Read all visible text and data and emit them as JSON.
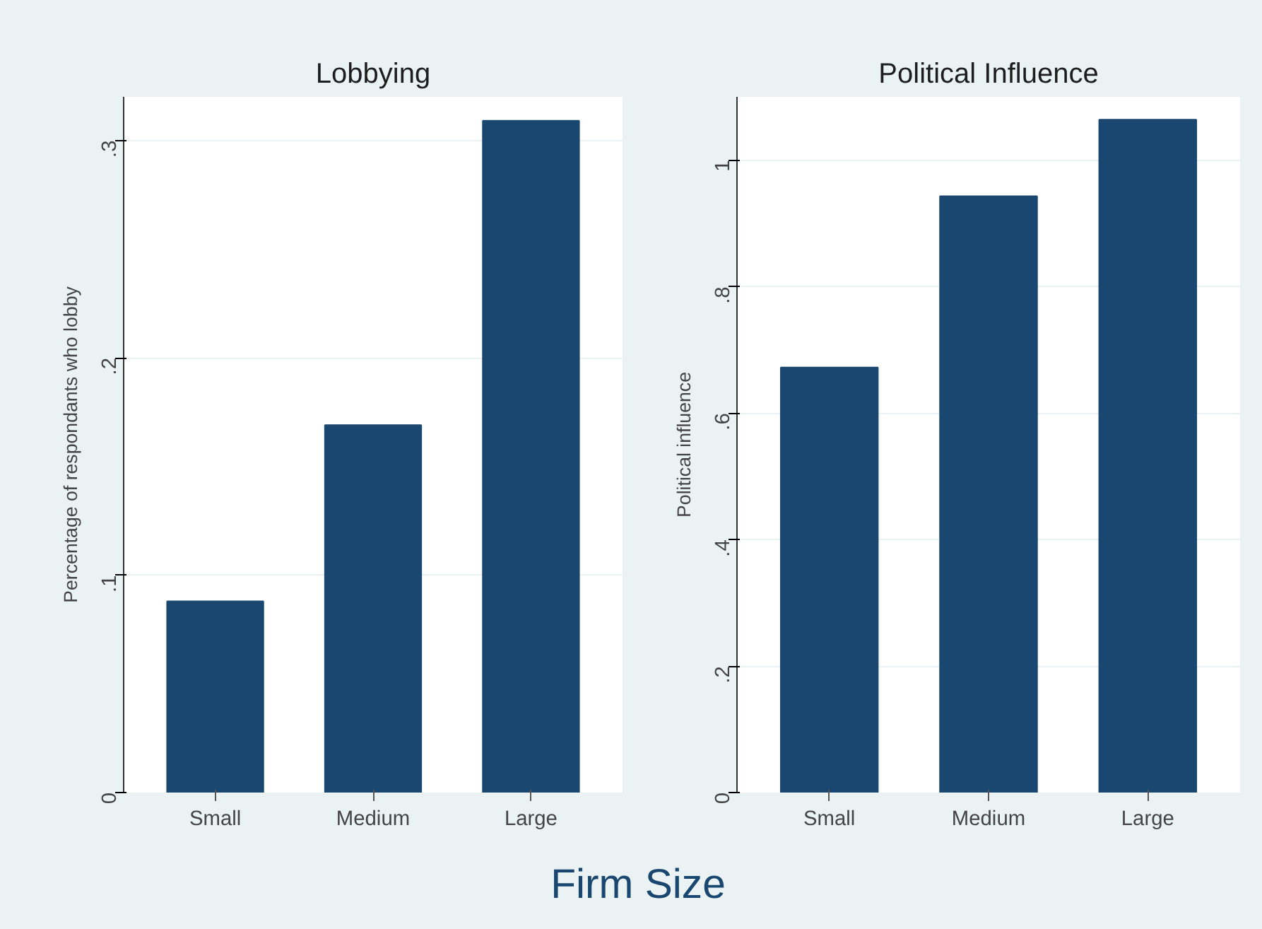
{
  "chart_data": [
    {
      "type": "bar",
      "title": "Lobbying",
      "ylabel": "Percentage of respondants who lobby",
      "xlabel": "Firm Size",
      "categories": [
        "Small",
        "Medium",
        "Large"
      ],
      "values": [
        0.088,
        0.169,
        0.309
      ],
      "color": "#1a476f",
      "ylim": [
        0,
        0.32
      ],
      "yticks": [
        0,
        {
          "value": 0.1,
          "label": ".1"
        },
        {
          "value": 0.2,
          "label": ".2"
        },
        {
          "value": 0.3,
          "label": ".3"
        }
      ],
      "grid": "y"
    },
    {
      "type": "bar",
      "title": "Political Influence",
      "ylabel": "Political influence",
      "categories": [
        "Small",
        "Medium",
        "Large"
      ],
      "values": [
        0.672,
        0.943,
        1.064
      ],
      "color": "#1a476f",
      "ylim": [
        0,
        1.1
      ],
      "yticks": [
        0,
        {
          "value": 0.2,
          "label": ".2"
        },
        {
          "value": 0.4,
          "label": ".4"
        },
        {
          "value": 0.6,
          "label": ".6"
        },
        {
          "value": 0.8,
          "label": ".8"
        },
        1
      ],
      "grid": "y"
    }
  ]
}
